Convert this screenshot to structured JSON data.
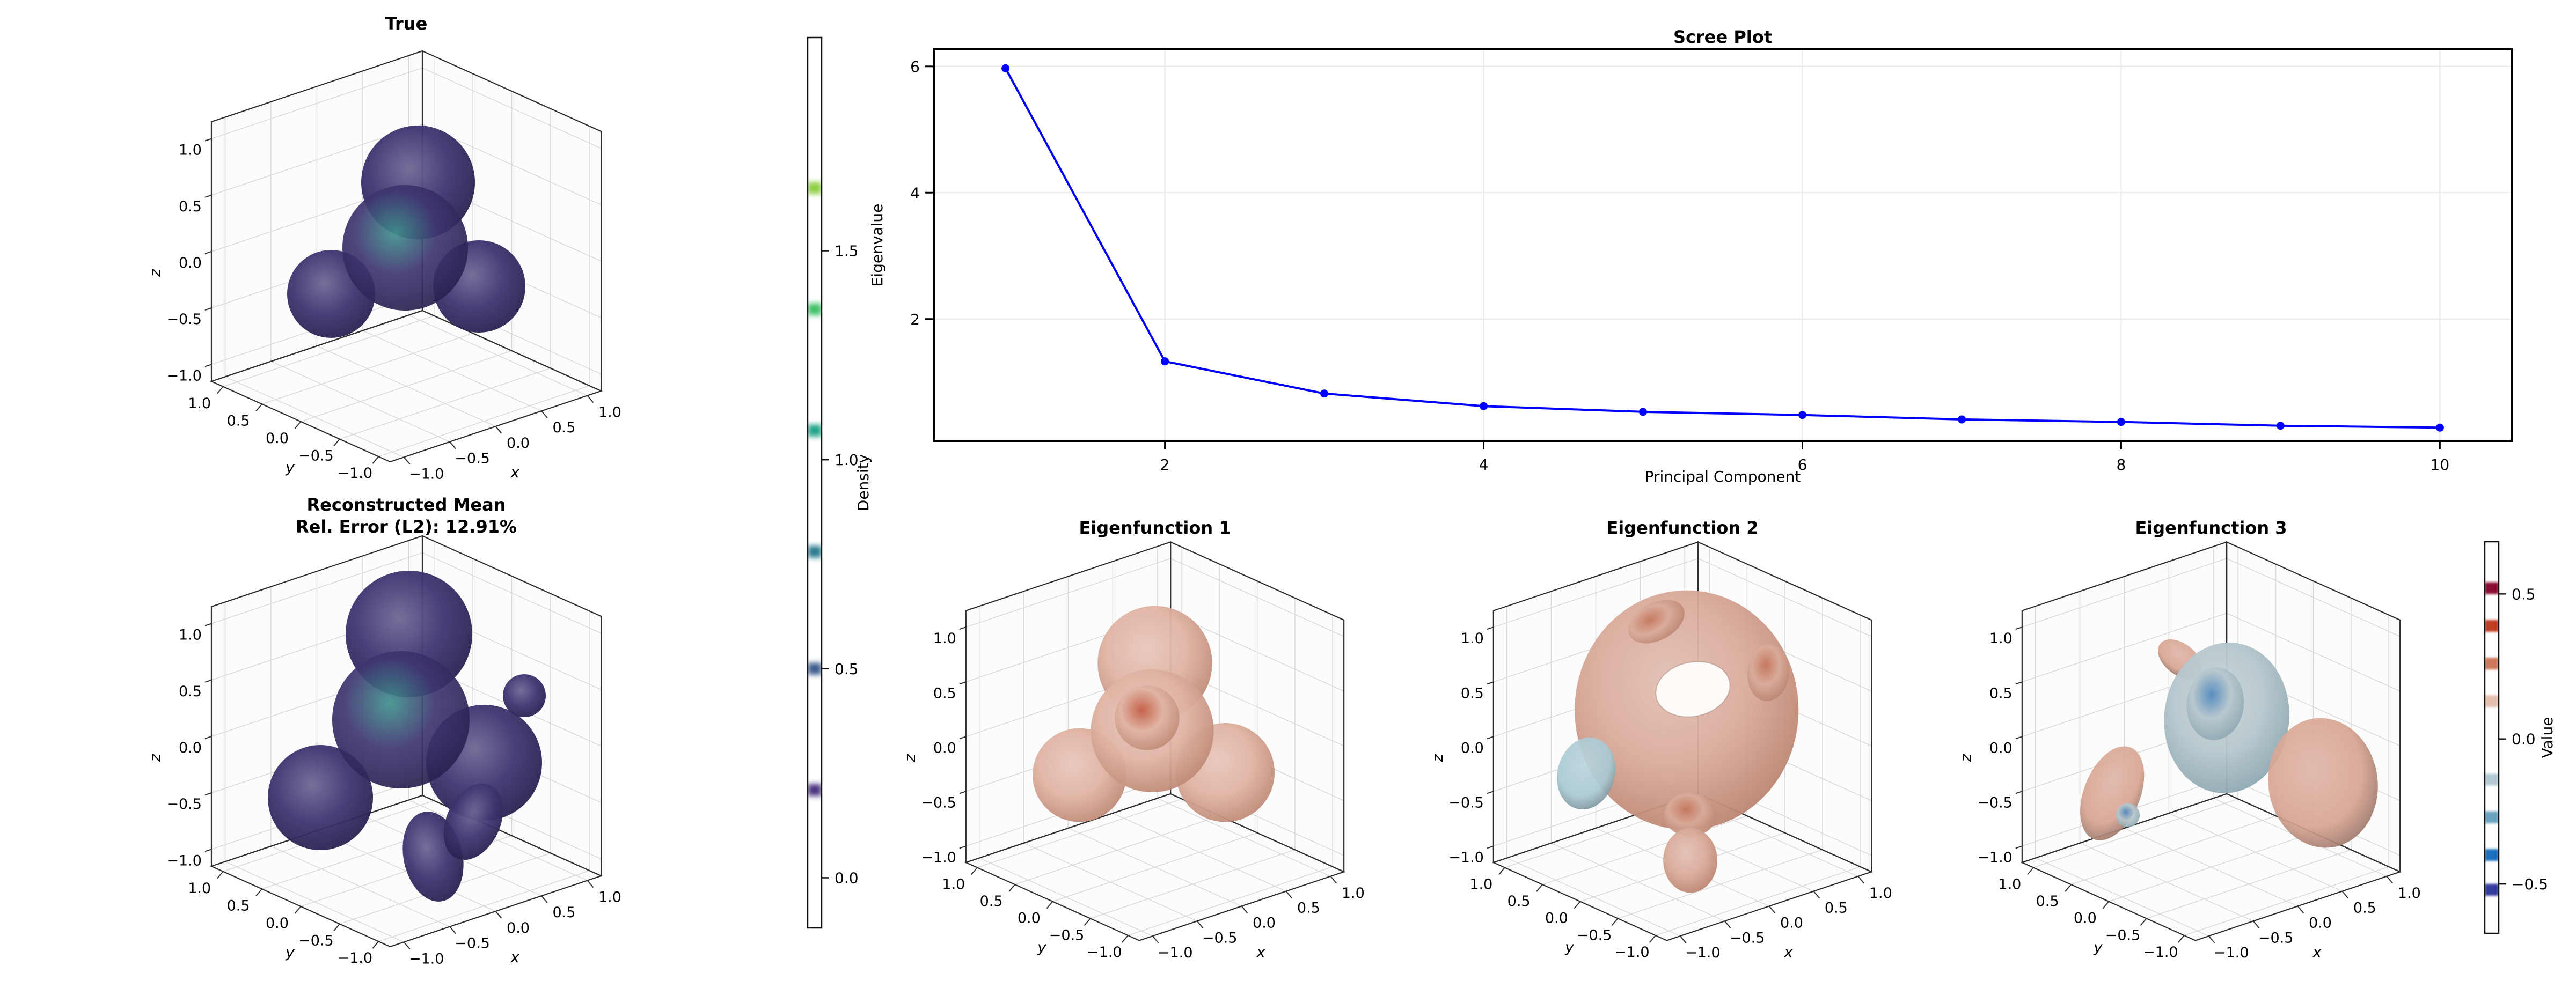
{
  "figure": {
    "background_color": "#ffffff"
  },
  "panels": {
    "true_plot": {
      "title": "True",
      "axis_labels": {
        "x": "x",
        "y": "y",
        "z": "z"
      },
      "tick_labels": [
        "1.0",
        "0.5",
        "0.0",
        "−0.5",
        "−1.0"
      ],
      "surface": {
        "type": "density-isosurface",
        "shape": "central sphere with one upper lobe and two lower side lobes",
        "outer_color": "#3f3571",
        "edge_color": "#292250",
        "core_color": "#3f918c"
      }
    },
    "reconstructed_plot": {
      "title_line1": "Reconstructed Mean",
      "title_line2": "Rel. Error (L2): 12.91%",
      "axis_labels": {
        "x": "x",
        "y": "y",
        "z": "z"
      },
      "tick_labels": [
        "1.0",
        "0.5",
        "0.0",
        "−0.5",
        "−1.0"
      ],
      "surface": {
        "type": "density-isosurface",
        "shape": "smoothed merged lobes with lower-right tail",
        "outer_color": "#3f3571",
        "edge_color": "#292250",
        "core_color": "#3f918c"
      }
    },
    "eigenfunction_1": {
      "title": "Eigenfunction 1",
      "axis_labels": {
        "x": "x",
        "y": "y",
        "z": "z"
      },
      "tick_labels": [
        "1.0",
        "0.5",
        "0.0",
        "−0.5",
        "−1.0"
      ],
      "surface": {
        "type": "eigenfunction-isosurface",
        "shape": "molecule-like positive salmon lobes with red-orange core",
        "outer_color": "#e0b4a4",
        "edge_color": "#c08b78",
        "core_color": "#c25b41"
      }
    },
    "eigenfunction_2": {
      "title": "Eigenfunction 2",
      "axis_labels": {
        "x": "x",
        "y": "y",
        "z": "z"
      },
      "tick_labels": [
        "1.0",
        "0.5",
        "0.0",
        "−0.5",
        "−1.0"
      ],
      "surface": {
        "type": "eigenfunction-isosurface",
        "shape": "hollow salmon shell with top opening, bottom stem and small negative blue patch",
        "outer_color": "#d9ab9b",
        "edge_color": "#bd8673",
        "core_color": "#c4765a",
        "secondary_color": "#a9c9d3"
      }
    },
    "eigenfunction_3": {
      "title": "Eigenfunction 3",
      "axis_labels": {
        "x": "x",
        "y": "y",
        "z": "z"
      },
      "tick_labels": [
        "1.0",
        "0.5",
        "0.0",
        "−0.5",
        "−1.0"
      ],
      "surface": {
        "type": "eigenfunction-isosurface",
        "shape": "negative blue-grey lobe with blue core plus positive salmon lobes and teardrop",
        "outer_color": "#b7c7cd",
        "edge_color": "#8fa9b2",
        "core_color": "#4f88bd",
        "secondary_color": "#d7a491"
      }
    }
  },
  "colorbars": {
    "density": {
      "label": "Density",
      "vmin": -0.12,
      "vmax": 2.01,
      "ticks": [
        {
          "value": 0.0,
          "label": "0.0"
        },
        {
          "value": 0.5,
          "label": "0.5"
        },
        {
          "value": 1.0,
          "label": "1.0"
        },
        {
          "value": 1.5,
          "label": "1.5"
        }
      ],
      "bands": [
        {
          "value": 0.21,
          "color": "#46327e"
        },
        {
          "value": 0.5,
          "color": "#3a5a8c"
        },
        {
          "value": 0.78,
          "color": "#2b7a8e"
        },
        {
          "value": 1.07,
          "color": "#1fa287"
        },
        {
          "value": 1.36,
          "color": "#3fbf68"
        },
        {
          "value": 1.65,
          "color": "#8dce3f"
        }
      ]
    },
    "value": {
      "label": "Value",
      "vmin": -0.67,
      "vmax": 0.68,
      "ticks": [
        {
          "value": 0.5,
          "label": "0.5"
        },
        {
          "value": 0.0,
          "label": "0.0"
        },
        {
          "value": -0.5,
          "label": "−0.5"
        }
      ],
      "bands": [
        {
          "value": 0.52,
          "color": "#8c1130"
        },
        {
          "value": 0.39,
          "color": "#c03d28"
        },
        {
          "value": 0.26,
          "color": "#cd7a5c"
        },
        {
          "value": 0.13,
          "color": "#e5c0ae"
        },
        {
          "value": -0.14,
          "color": "#b2c9d2"
        },
        {
          "value": -0.27,
          "color": "#6ba3bf"
        },
        {
          "value": -0.4,
          "color": "#1d6fc0"
        },
        {
          "value": -0.52,
          "color": "#333e9e"
        }
      ]
    }
  },
  "chart_data": {
    "type": "line",
    "title": "Scree Plot",
    "xlabel": "Principal Component",
    "ylabel": "Eigenvalue",
    "x": [
      1,
      2,
      3,
      4,
      5,
      6,
      7,
      8,
      9,
      10
    ],
    "y": [
      5.97,
      1.33,
      0.82,
      0.62,
      0.53,
      0.48,
      0.41,
      0.37,
      0.31,
      0.28
    ],
    "xticks": [
      2,
      4,
      6,
      8,
      10
    ],
    "yticks": [
      2,
      4,
      6
    ],
    "xlim": [
      0.55,
      10.45
    ],
    "ylim": [
      0.07,
      6.27
    ],
    "grid": true,
    "line_color": "#0000ff",
    "marker": "o"
  }
}
